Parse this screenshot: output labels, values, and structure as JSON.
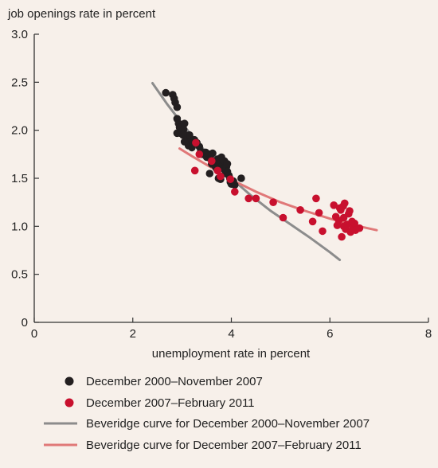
{
  "chart_data": {
    "type": "scatter",
    "title": "",
    "ylabel": "job openings rate in percent",
    "xlabel": "unemployment rate in percent",
    "xlim": [
      0,
      8
    ],
    "ylim": [
      0,
      3
    ],
    "xticks": [
      0,
      2,
      4,
      6,
      8
    ],
    "yticks": [
      0,
      0.5,
      1.0,
      1.5,
      2.0,
      2.5,
      3.0
    ],
    "ytick_labels": [
      "0",
      "0.5",
      "1.0",
      "1.5",
      "2.0",
      "2.5",
      "3.0"
    ],
    "xtick_labels": [
      "0",
      "2",
      "4",
      "6",
      "8"
    ],
    "grid": false,
    "legend_position": "bottom",
    "series": [
      {
        "name": "December 2000–November 2007",
        "kind": "points",
        "color": "#231f20",
        "points": [
          [
            2.67,
            2.39
          ],
          [
            2.81,
            2.37
          ],
          [
            2.84,
            2.33
          ],
          [
            2.86,
            2.29
          ],
          [
            2.9,
            2.24
          ],
          [
            2.9,
            2.12
          ],
          [
            2.93,
            2.07
          ],
          [
            2.95,
            2.03
          ],
          [
            2.9,
            1.97
          ],
          [
            2.97,
            1.97
          ],
          [
            3.0,
            1.99
          ],
          [
            3.03,
            2.01
          ],
          [
            3.05,
            2.07
          ],
          [
            3.07,
            1.95
          ],
          [
            3.1,
            1.93
          ],
          [
            3.12,
            1.88
          ],
          [
            3.13,
            1.84
          ],
          [
            3.15,
            1.95
          ],
          [
            3.17,
            1.88
          ],
          [
            3.2,
            1.82
          ],
          [
            3.22,
            1.86
          ],
          [
            3.25,
            1.9
          ],
          [
            3.3,
            1.87
          ],
          [
            3.35,
            1.83
          ],
          [
            3.38,
            1.78
          ],
          [
            3.42,
            1.75
          ],
          [
            3.5,
            1.72
          ],
          [
            3.55,
            1.75
          ],
          [
            3.58,
            1.7
          ],
          [
            3.6,
            1.65
          ],
          [
            3.62,
            1.76
          ],
          [
            3.65,
            1.68
          ],
          [
            3.68,
            1.62
          ],
          [
            3.7,
            1.6
          ],
          [
            3.72,
            1.7
          ],
          [
            3.75,
            1.68
          ],
          [
            3.78,
            1.65
          ],
          [
            3.8,
            1.72
          ],
          [
            3.82,
            1.63
          ],
          [
            3.84,
            1.6
          ],
          [
            3.86,
            1.68
          ],
          [
            3.88,
            1.55
          ],
          [
            3.9,
            1.62
          ],
          [
            3.92,
            1.57
          ],
          [
            3.95,
            1.53
          ],
          [
            3.97,
            1.5
          ],
          [
            3.98,
            1.46
          ],
          [
            4.0,
            1.44
          ],
          [
            4.04,
            1.47
          ],
          [
            4.07,
            1.43
          ],
          [
            3.74,
            1.5
          ],
          [
            3.78,
            1.49
          ],
          [
            3.56,
            1.55
          ],
          [
            4.2,
            1.5
          ],
          [
            3.92,
            1.65
          ],
          [
            3.48,
            1.77
          ],
          [
            3.05,
            1.88
          ],
          [
            3.02,
            1.95
          ]
        ]
      },
      {
        "name": "December 2007–February 2011",
        "kind": "points",
        "color": "#c8102e",
        "points": [
          [
            3.28,
            1.87
          ],
          [
            3.35,
            1.75
          ],
          [
            3.26,
            1.58
          ],
          [
            3.6,
            1.68
          ],
          [
            3.72,
            1.58
          ],
          [
            3.78,
            1.52
          ],
          [
            3.98,
            1.49
          ],
          [
            4.07,
            1.36
          ],
          [
            4.35,
            1.29
          ],
          [
            4.5,
            1.29
          ],
          [
            4.85,
            1.25
          ],
          [
            5.05,
            1.09
          ],
          [
            5.4,
            1.17
          ],
          [
            5.65,
            1.05
          ],
          [
            5.72,
            1.29
          ],
          [
            5.78,
            1.14
          ],
          [
            5.85,
            0.95
          ],
          [
            6.08,
            1.22
          ],
          [
            6.12,
            1.1
          ],
          [
            6.15,
            1.01
          ],
          [
            6.2,
            1.19
          ],
          [
            6.22,
            1.17
          ],
          [
            6.24,
            0.89
          ],
          [
            6.27,
            1.21
          ],
          [
            6.28,
            1.09
          ],
          [
            6.3,
            1.24
          ],
          [
            6.32,
            0.97
          ],
          [
            6.35,
            1.02
          ],
          [
            6.38,
            1.13
          ],
          [
            6.4,
            1.16
          ],
          [
            6.42,
            0.94
          ],
          [
            6.45,
            1.05
          ],
          [
            6.47,
            0.98
          ],
          [
            6.5,
            1.03
          ],
          [
            6.52,
            0.96
          ],
          [
            6.6,
            0.98
          ],
          [
            6.28,
            1.0
          ],
          [
            6.18,
            1.06
          ]
        ]
      },
      {
        "name": "Beveridge curve for December 2000–November 2007",
        "kind": "curve",
        "color": "#8c8c8c",
        "points": [
          [
            2.4,
            2.49
          ],
          [
            2.7,
            2.27
          ],
          [
            3.0,
            2.07
          ],
          [
            3.3,
            1.88
          ],
          [
            3.6,
            1.71
          ],
          [
            4.0,
            1.5
          ],
          [
            4.4,
            1.32
          ],
          [
            4.8,
            1.16
          ],
          [
            5.2,
            1.02
          ],
          [
            5.6,
            0.88
          ],
          [
            6.0,
            0.73
          ],
          [
            6.2,
            0.65
          ]
        ]
      },
      {
        "name": "Beveridge curve for December 2007–February 2011",
        "kind": "curve",
        "color": "#e07878",
        "points": [
          [
            2.95,
            1.81
          ],
          [
            3.2,
            1.73
          ],
          [
            3.5,
            1.64
          ],
          [
            3.8,
            1.55
          ],
          [
            4.1,
            1.46
          ],
          [
            4.5,
            1.36
          ],
          [
            5.0,
            1.25
          ],
          [
            5.5,
            1.16
          ],
          [
            6.0,
            1.08
          ],
          [
            6.5,
            1.01
          ],
          [
            6.95,
            0.96
          ]
        ]
      }
    ]
  }
}
